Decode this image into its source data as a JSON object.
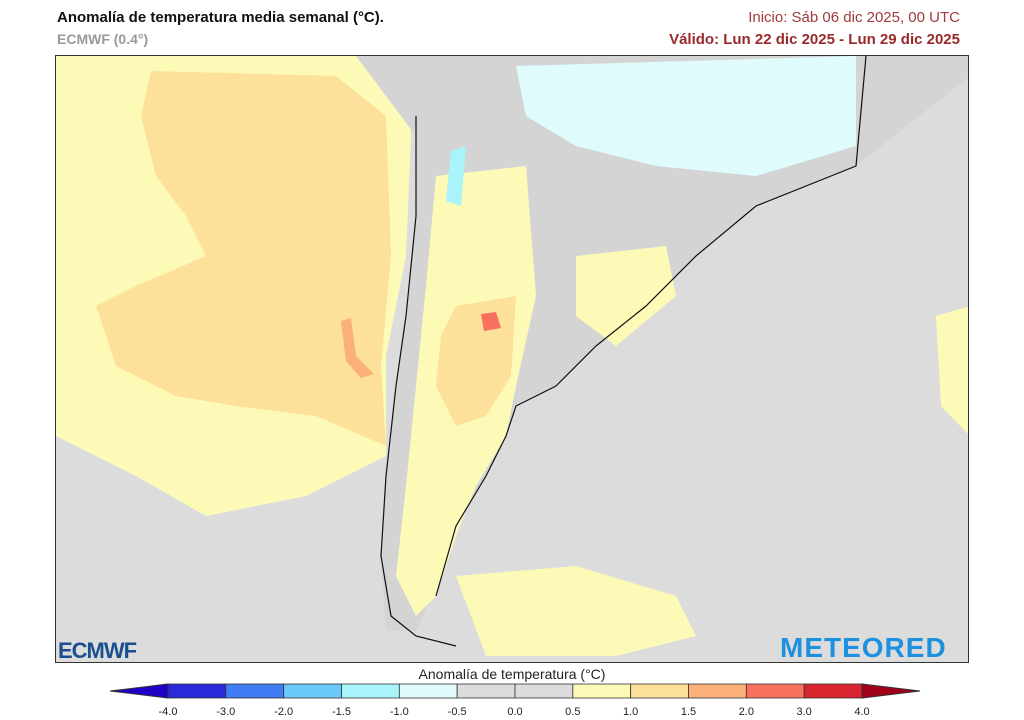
{
  "header": {
    "title": "Anomalía de temperatura media semanal (°C).",
    "model": "ECMWF (0.4°)",
    "init": "Inicio: Sáb 06 dic 2025, 00 UTC",
    "valid": "Válido: Lun 22 dic 2025 - Lun 29 dic 2025"
  },
  "logos": {
    "left": "ECMWF",
    "right": "METEORED"
  },
  "colorbar": {
    "title": "Anomalía de temperatura (°C)",
    "ticks": [
      "-4.0",
      "-3.0",
      "-2.0",
      "-1.5",
      "-1.0",
      "-0.5",
      "0.0",
      "0.5",
      "1.0",
      "1.5",
      "2.0",
      "3.0",
      "4.0"
    ],
    "colors": [
      "#2a2ad8",
      "#3f7df5",
      "#6ac9fa",
      "#a8f4fa",
      "#e0fbfb",
      "#dcdcdc",
      "#dcdcdc",
      "#fdfab8",
      "#fde09a",
      "#fbb077",
      "#f8705e",
      "#d8242e"
    ],
    "under_color": "#1e00c8",
    "over_color": "#a00018"
  }
}
